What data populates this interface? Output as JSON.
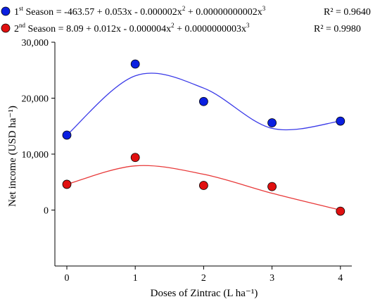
{
  "chart_data": {
    "type": "scatter",
    "x": [
      0,
      1,
      2,
      3,
      4
    ],
    "xticks": [
      "0",
      "1",
      "2",
      "3",
      "4"
    ],
    "xlabel": "Doses of Zintrac (L ha⁻¹)",
    "ylabel": "Net income (USD ha⁻¹)",
    "yticks": [
      "0",
      "10,000",
      "20,000",
      "30,000"
    ],
    "ytick_values": [
      0,
      10000,
      20000,
      30000
    ],
    "ylim": [
      -10000,
      30000
    ],
    "xlim": [
      -0.2,
      4.3
    ],
    "grid": false,
    "legend_position": "top",
    "series": [
      {
        "name_prefix": "1",
        "name_sup": "st",
        "name_suffix": " Season",
        "equation": {
          "lead": " = -463.57 + 0.053x - 0.000002x",
          "sup1": "2",
          "mid": " + 0.00000000002x",
          "sup2": "3"
        },
        "r2": "R² = 0.9640",
        "color": "#0a1fe0",
        "line_color": "#3a3ae8",
        "values": [
          13400,
          26100,
          19400,
          15600,
          15900
        ],
        "fit": [
          13400,
          24000,
          21800,
          14600,
          15900
        ]
      },
      {
        "name_prefix": "2",
        "name_sup": "nd",
        "name_suffix": " Season",
        "equation": {
          "lead": " = 8.09 + 0.012x - 0.000004x",
          "sup1": "2",
          "mid": " + 0.0000000003x",
          "sup2": "3"
        },
        "r2": "R² = 0.9980",
        "color": "#e01010",
        "line_color": "#e83a3a",
        "values": [
          4600,
          9400,
          4400,
          4200,
          -200
        ],
        "fit": [
          4600,
          7900,
          6400,
          3000,
          0
        ]
      }
    ]
  }
}
